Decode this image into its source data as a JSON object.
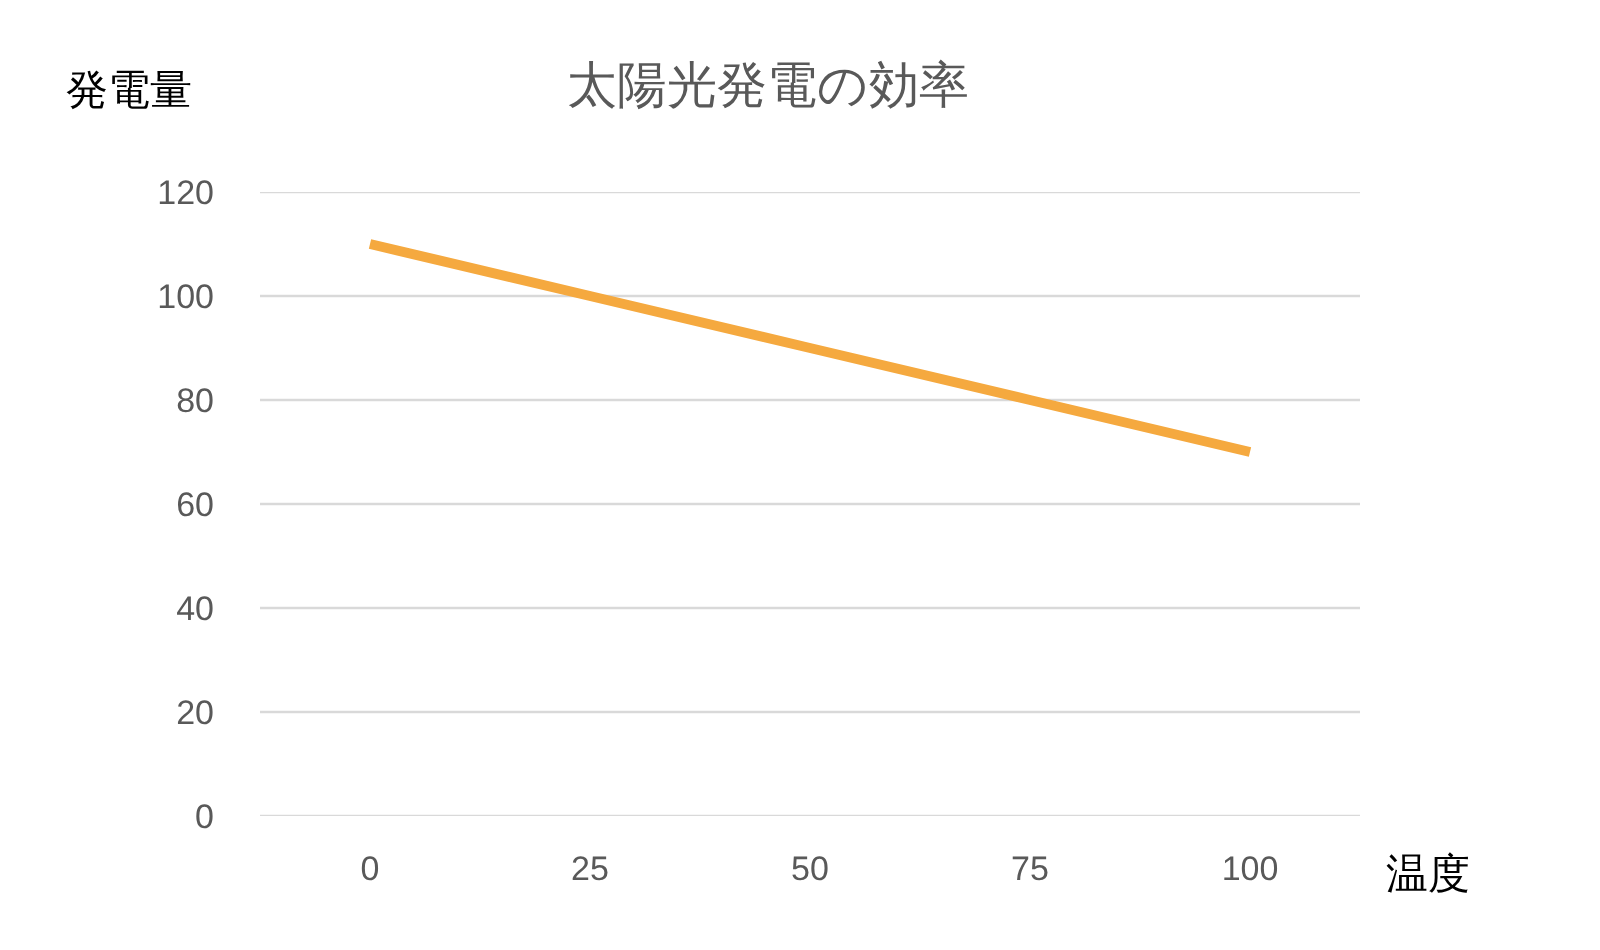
{
  "chart_data": {
    "type": "line",
    "title": "太陽光発電の効率",
    "xlabel": "温度",
    "ylabel": "発電量",
    "categories": [
      "0",
      "25",
      "50",
      "75",
      "100"
    ],
    "series": [
      {
        "color": "#f5a93f",
        "values": [
          110,
          100,
          90,
          80,
          70
        ]
      }
    ],
    "ylim": [
      0,
      120
    ],
    "yticks": [
      0,
      20,
      40,
      60,
      80,
      100,
      120
    ],
    "grid": "y",
    "marker": "none",
    "line_style": "solid"
  }
}
